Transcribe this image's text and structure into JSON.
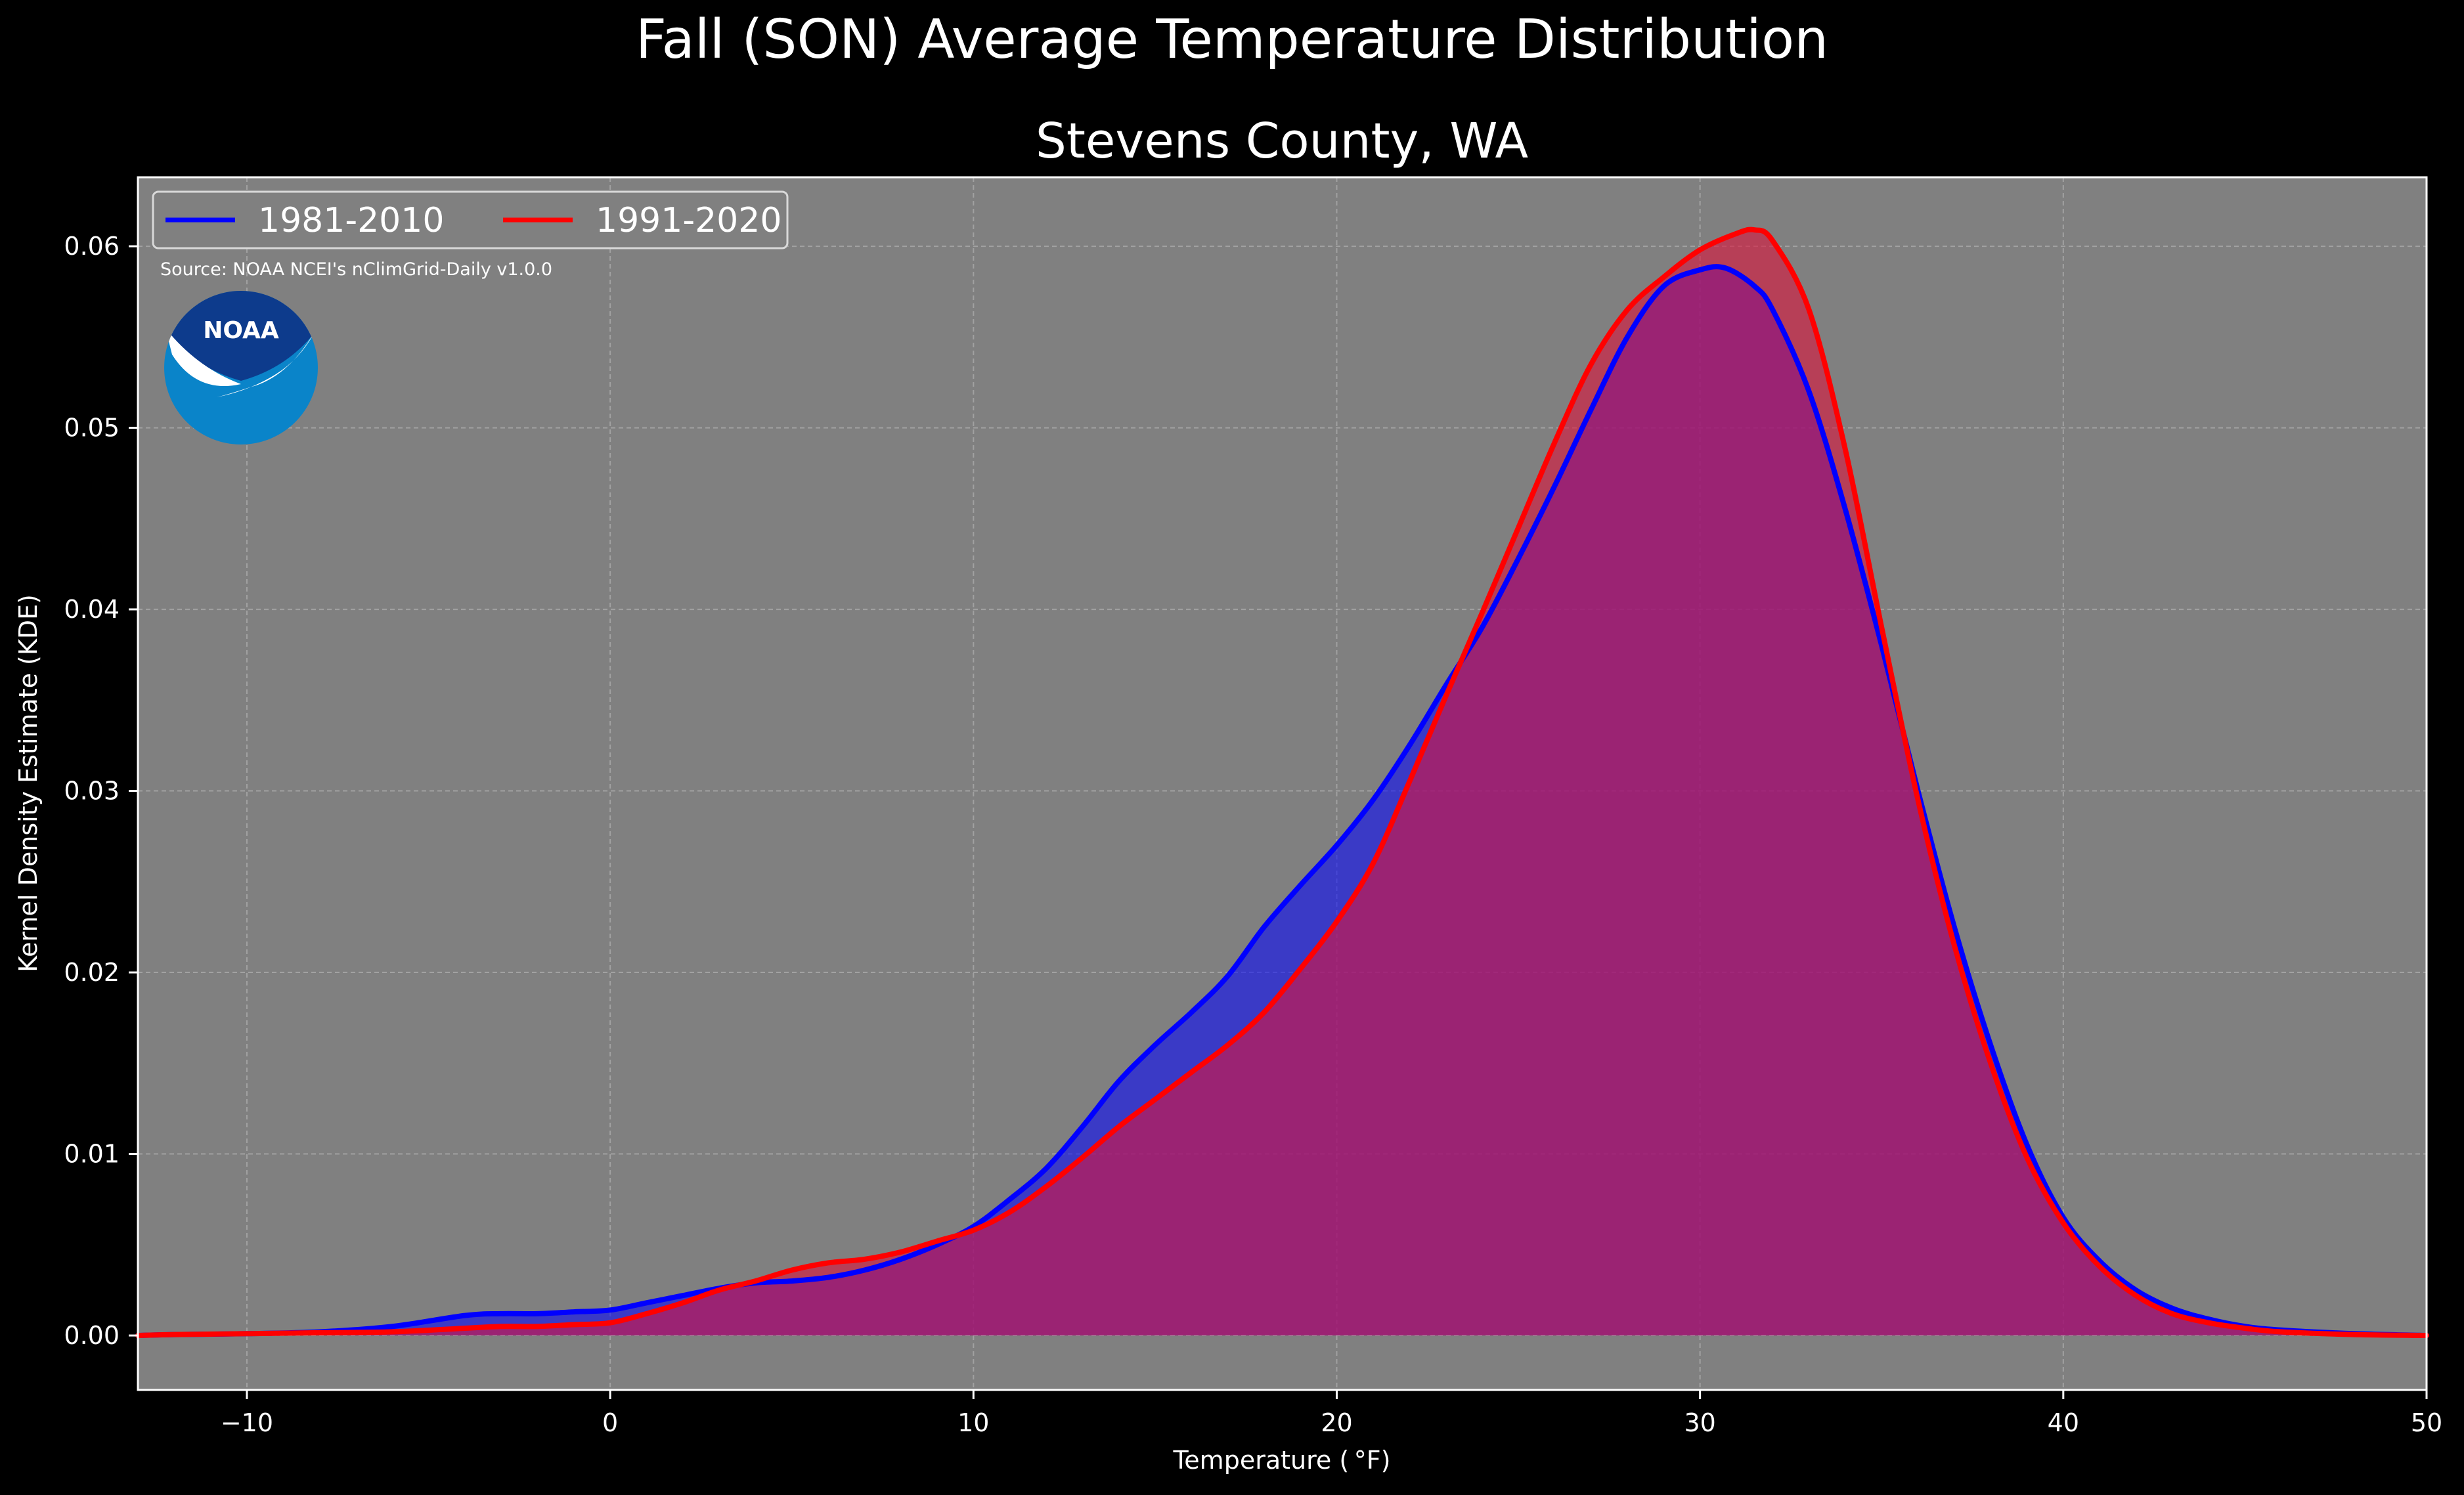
{
  "chart_data": {
    "type": "area",
    "suptitle": "Fall (SON) Average Temperature Distribution",
    "title": "Stevens County, WA",
    "xlabel": "Temperature ($^\\circ$F)",
    "xlabel_display": "Temperature ( °F)",
    "ylabel": "Kernel Density Estimate (KDE)",
    "source": "Source: NOAA NCEI's nClimGrid-Daily v1.0.0",
    "logo_text": "NOAA",
    "xlim": [
      -13,
      50
    ],
    "ylim": [
      -0.003,
      0.0638
    ],
    "x_ticks": [
      -10,
      0,
      10,
      20,
      30,
      40,
      50
    ],
    "x_tick_labels": [
      "−10",
      "0",
      "10",
      "20",
      "30",
      "40",
      "50"
    ],
    "y_ticks": [
      0.0,
      0.01,
      0.02,
      0.03,
      0.04,
      0.05,
      0.06
    ],
    "y_tick_labels": [
      "0.00",
      "0.01",
      "0.02",
      "0.03",
      "0.04",
      "0.05",
      "0.06"
    ],
    "grid": true,
    "legend_position": "top-left",
    "background_color": "#000000",
    "plot_background": "#808080",
    "series": [
      {
        "name": "1981-2010",
        "color": "#0000ff",
        "fill_color": "#0000ff",
        "x": [
          -13,
          -12,
          -10,
          -8,
          -6,
          -4,
          -3,
          -2,
          -1,
          0,
          1,
          2,
          3,
          4,
          5,
          6,
          7,
          8,
          9,
          10,
          11,
          12,
          13,
          14,
          15,
          16,
          17,
          18,
          19,
          20,
          21,
          22,
          23,
          24,
          25,
          26,
          27,
          28,
          29,
          30,
          30.7,
          31.5,
          32,
          33,
          34,
          35,
          36,
          37,
          38,
          39,
          40,
          41,
          42,
          43,
          44,
          45,
          46,
          48,
          50
        ],
        "y": [
          0.0,
          5e-05,
          0.0001,
          0.0002,
          0.0005,
          0.0011,
          0.0012,
          0.0012,
          0.0013,
          0.0014,
          0.0018,
          0.0022,
          0.0026,
          0.0029,
          0.003,
          0.0032,
          0.0036,
          0.0042,
          0.005,
          0.006,
          0.0075,
          0.0092,
          0.0115,
          0.014,
          0.016,
          0.0178,
          0.0198,
          0.0225,
          0.0248,
          0.027,
          0.0295,
          0.0325,
          0.0358,
          0.039,
          0.0428,
          0.0468,
          0.051,
          0.055,
          0.0578,
          0.0587,
          0.0588,
          0.0578,
          0.0565,
          0.052,
          0.0455,
          0.038,
          0.03,
          0.0225,
          0.016,
          0.0105,
          0.0065,
          0.0041,
          0.0025,
          0.0015,
          0.0009,
          0.0005,
          0.0003,
          0.0001,
          0.0
        ]
      },
      {
        "name": "1991-2020",
        "color": "#ff0000",
        "fill_color": "#dc143c",
        "x": [
          -13,
          -12,
          -10,
          -8,
          -6,
          -4,
          -3,
          -2,
          -1,
          0,
          1,
          2,
          3,
          4,
          5,
          6,
          7,
          8,
          9,
          10,
          11,
          12,
          13,
          14,
          15,
          16,
          17,
          18,
          19,
          20,
          21,
          22,
          23,
          24,
          25,
          26,
          27,
          28,
          29,
          30,
          31,
          31.5,
          32,
          33,
          34,
          35,
          36,
          37,
          38,
          39,
          40,
          41,
          42,
          43,
          44,
          45,
          46,
          48,
          50
        ],
        "y": [
          0.0,
          5e-05,
          0.0001,
          0.00015,
          0.0002,
          0.0004,
          0.0005,
          0.0005,
          0.0006,
          0.0007,
          0.0012,
          0.0018,
          0.0025,
          0.003,
          0.0036,
          0.004,
          0.0042,
          0.0046,
          0.0052,
          0.0058,
          0.0068,
          0.0082,
          0.0098,
          0.0115,
          0.013,
          0.0145,
          0.016,
          0.0178,
          0.0202,
          0.0228,
          0.026,
          0.0305,
          0.0352,
          0.0398,
          0.0445,
          0.0492,
          0.0535,
          0.0565,
          0.0583,
          0.0598,
          0.0607,
          0.0609,
          0.0603,
          0.0565,
          0.0488,
          0.039,
          0.0295,
          0.0215,
          0.015,
          0.0098,
          0.0062,
          0.0038,
          0.0022,
          0.0012,
          0.0007,
          0.0004,
          0.0002,
          5e-05,
          0.0
        ]
      }
    ]
  }
}
